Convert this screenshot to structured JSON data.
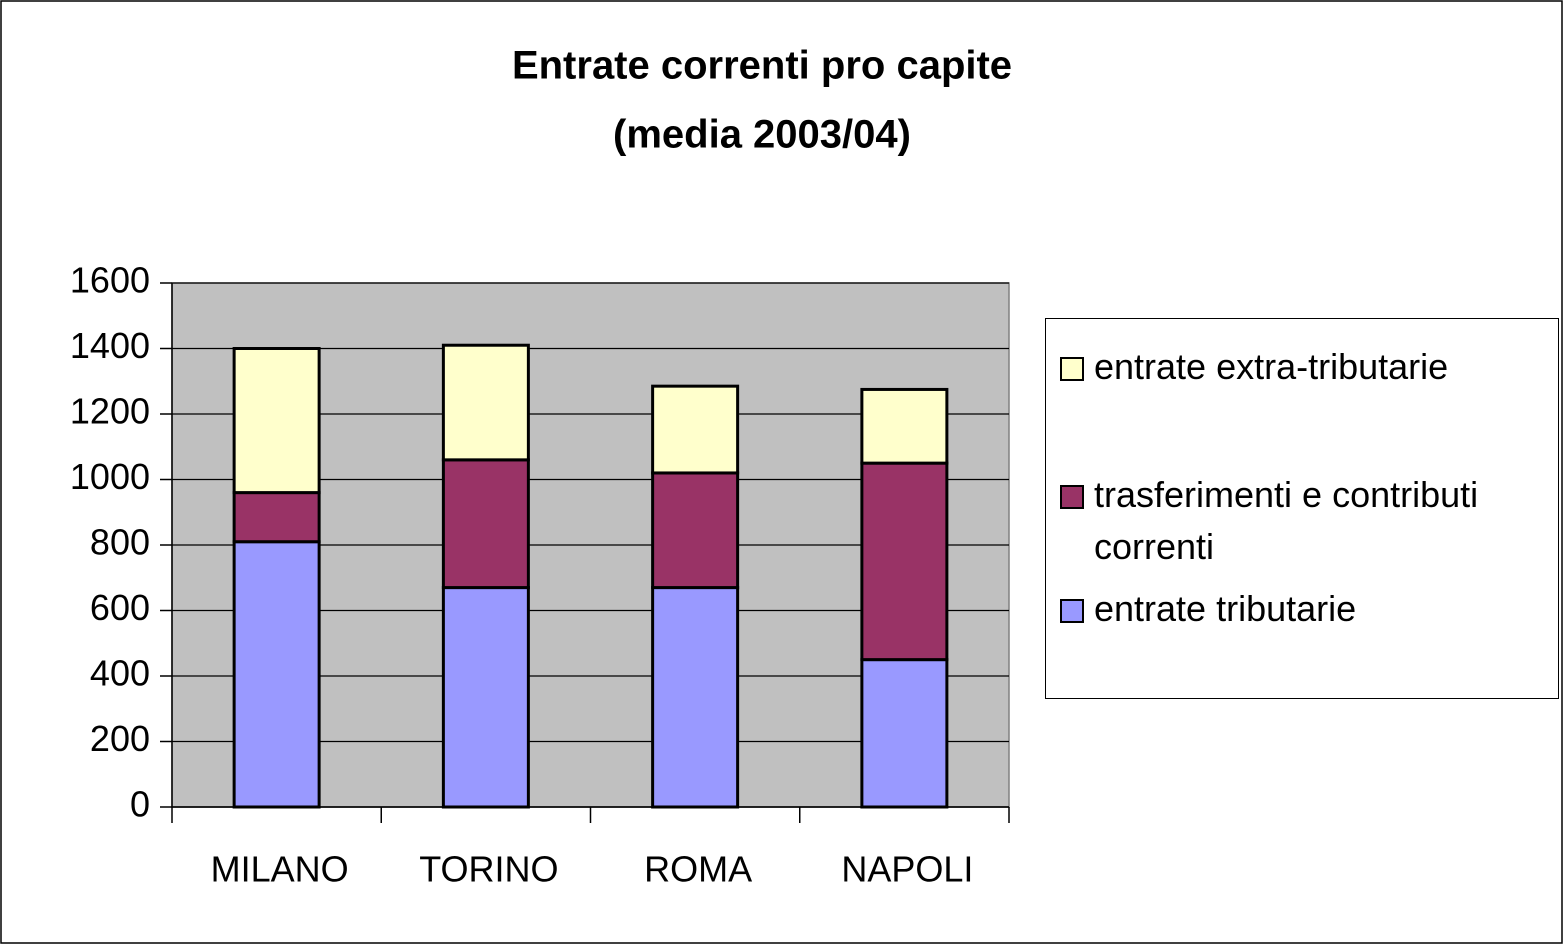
{
  "chart_data": {
    "type": "stacked-bar",
    "title": [
      "Entrate correnti pro capite",
      "(media 2003/04)"
    ],
    "categories": [
      "MILANO",
      "TORINO",
      "ROMA",
      "NAPOLI"
    ],
    "series": [
      {
        "name": "entrate tributarie",
        "color": "#9999ff",
        "values": [
          810,
          670,
          670,
          450
        ]
      },
      {
        "name": "trasferimenti e contributi correnti",
        "color": "#993366",
        "values": [
          150,
          390,
          350,
          600
        ]
      },
      {
        "name": "entrate extra-tributarie",
        "color": "#ffffcc",
        "values": [
          440,
          350,
          265,
          225
        ]
      }
    ],
    "ylim": [
      0,
      1600
    ],
    "yticks": [
      0,
      200,
      400,
      600,
      800,
      1000,
      1200,
      1400,
      1600
    ],
    "grid": true,
    "legend": "right"
  }
}
